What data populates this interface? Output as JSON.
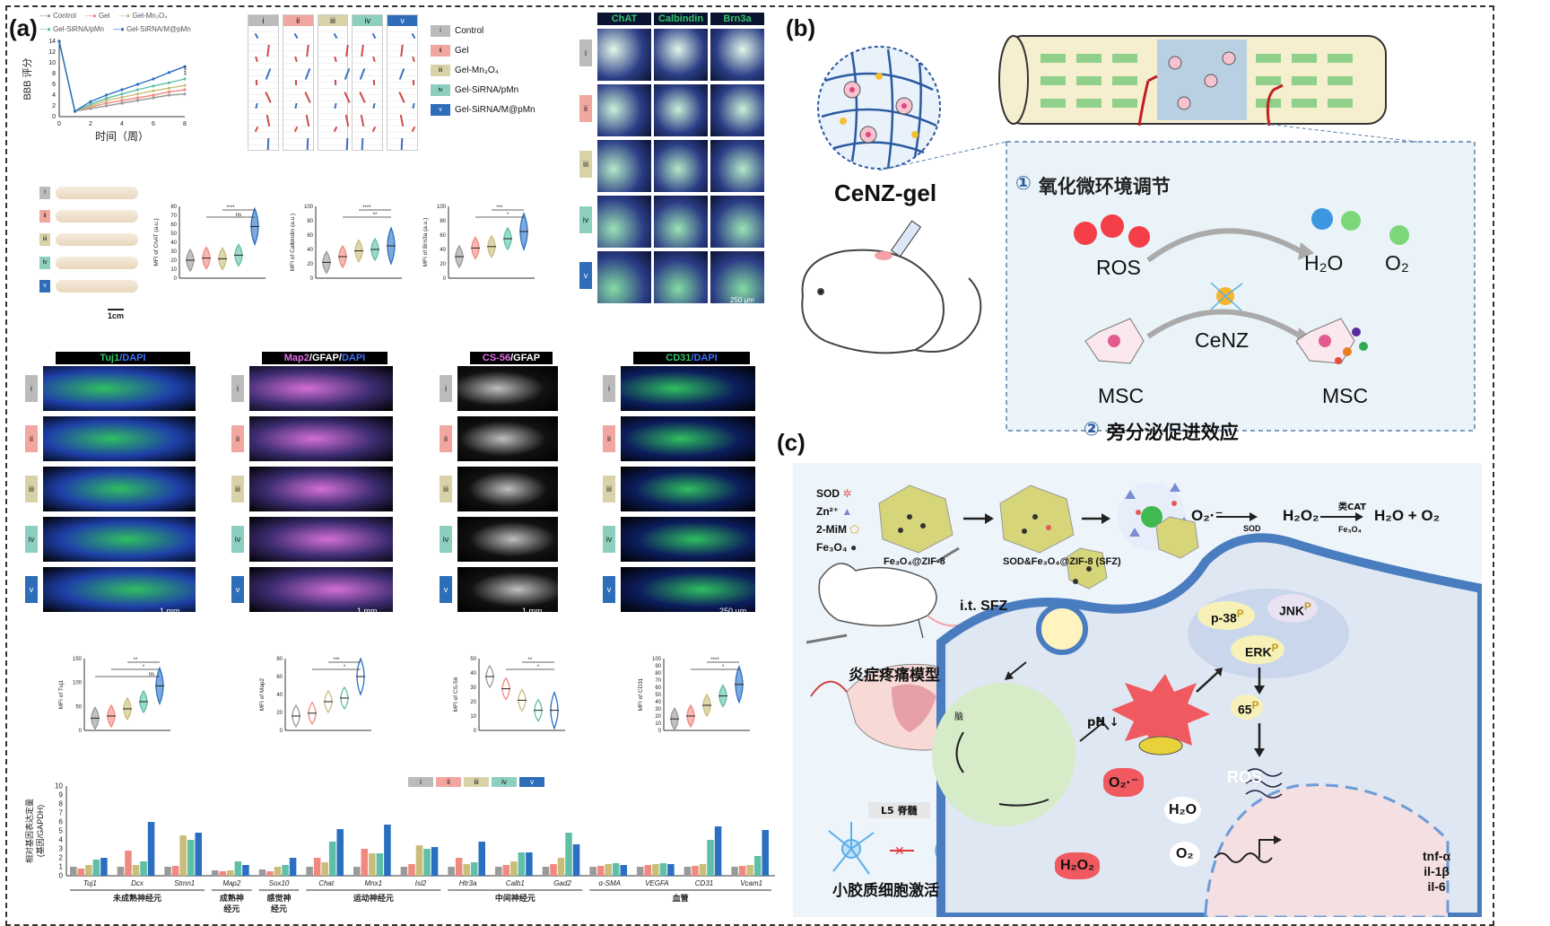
{
  "panels": {
    "a": "(a)",
    "b": "(b)",
    "c": "(c)"
  },
  "legend_a": [
    "Control",
    "Gel",
    "Gel-Mn₃O₄",
    "Gel-SiRNA/pMn",
    "Gel-SiRNA/M@pMn"
  ],
  "groups": [
    "i",
    "ii",
    "iii",
    "iv",
    "v"
  ],
  "group_legend": [
    "Control",
    "Gel",
    "Gel-Mn₃O₄",
    "Gel-SiRNA/pMn",
    "Gel-SiRNA/M@pMn"
  ],
  "bbb": {
    "ylabel": "BBB 评分",
    "xlabel": "时间（周）",
    "x": [
      0,
      1,
      2,
      3,
      4,
      5,
      6,
      7,
      8
    ],
    "yticks": [
      0,
      2,
      4,
      6,
      8,
      10,
      12,
      14
    ],
    "series": [
      {
        "name": "Control",
        "values": [
          14,
          1,
          1.5,
          2,
          2.5,
          3,
          3.5,
          4,
          4.2
        ]
      },
      {
        "name": "Gel",
        "values": [
          14,
          1,
          1.8,
          2.5,
          3,
          3.5,
          4,
          4.6,
          5
        ]
      },
      {
        "name": "Gel-Mn₃O₄",
        "values": [
          14,
          1,
          2,
          3,
          3.6,
          4.2,
          4.8,
          5.3,
          5.8
        ]
      },
      {
        "name": "Gel-SiRNA/pMn",
        "values": [
          14,
          1,
          2.3,
          3.4,
          4.2,
          5,
          5.7,
          6.3,
          7
        ]
      },
      {
        "name": "Gel-SiRNA/M@pMn",
        "values": [
          14,
          1,
          2.8,
          4,
          5,
          6,
          7,
          8.2,
          9.3
        ]
      }
    ],
    "sig": "****"
  },
  "scale_1cm": "1cm",
  "violins_top": [
    {
      "ylabel": "MFI of ChAT (a.u.)",
      "ticks": [
        "0",
        "10",
        "20",
        "30",
        "40",
        "50",
        "60",
        "70",
        "80"
      ],
      "sig": [
        "****",
        "ns"
      ]
    },
    {
      "ylabel": "MFI of Calbindin (a.u.)",
      "ticks": [
        "0",
        "20",
        "40",
        "60",
        "80",
        "100"
      ],
      "sig": [
        "****",
        "**"
      ]
    },
    {
      "ylabel": "MFI of Brn3a (a.u.)",
      "ticks": [
        "0",
        "20",
        "40",
        "60",
        "80",
        "100"
      ],
      "sig": [
        "***",
        "*"
      ]
    }
  ],
  "stain_top": [
    "ChAT",
    "Calbindin",
    "Brn3a"
  ],
  "scale_250": "250 μm",
  "stain_mid": [
    {
      "a": "Tuj1",
      "b": "/DAPI",
      "c": ""
    },
    {
      "a": "Map2",
      "b": "/GFAP/",
      "c": "DAPI"
    },
    {
      "a": "CS-56",
      "b": "/GFAP",
      "c": ""
    },
    {
      "a": "CD31",
      "b": "/",
      "c": "DAPI"
    }
  ],
  "scale_1mm": "1 mm",
  "violins_mid": [
    {
      "ylabel": "MFI of Tuj1",
      "ticks": [
        "0",
        "50",
        "100",
        "150"
      ],
      "sig": [
        "**",
        "*",
        "ns"
      ]
    },
    {
      "ylabel": "MFI of Map2",
      "ticks": [
        "0",
        "20",
        "40",
        "60",
        "80"
      ],
      "sig": [
        "***",
        "*"
      ]
    },
    {
      "ylabel": "MFI of CS-56",
      "ticks": [
        "0",
        "10",
        "20",
        "30",
        "40",
        "50"
      ],
      "sig": [
        "**",
        "*"
      ]
    },
    {
      "ylabel": "MFI of CD31",
      "ticks": [
        "0",
        "10",
        "20",
        "30",
        "40",
        "50",
        "60",
        "70",
        "80",
        "90",
        "100"
      ],
      "sig": [
        "****",
        "*"
      ]
    }
  ],
  "gene_chart": {
    "ylabel": "相对基因表达定量\n(基因/GAPDH)",
    "yticks": [
      "0",
      "1",
      "2",
      "3",
      "4",
      "5",
      "6",
      "7",
      "8",
      "9",
      "10"
    ],
    "genes": [
      "Tuj1",
      "Dcx",
      "Stmn1",
      "Map2",
      "Sox10",
      "Chat",
      "Mnx1",
      "Isl2",
      "Htr3a",
      "Calb1",
      "Gad2",
      "α-SMA",
      "VEGFA",
      "CD31",
      "Vcam1"
    ],
    "categories": [
      {
        "label": "未成熟神经元",
        "span": [
          0,
          2
        ]
      },
      {
        "label": "成熟神经元",
        "span": [
          3,
          3
        ]
      },
      {
        "label": "感觉神经元",
        "span": [
          4,
          4
        ]
      },
      {
        "label": "运动神经元",
        "span": [
          5,
          7
        ]
      },
      {
        "label": "中间神经元",
        "span": [
          8,
          10
        ]
      },
      {
        "label": "血管",
        "span": [
          11,
          14
        ]
      }
    ],
    "values": [
      [
        1,
        0.8,
        1.2,
        1.8,
        2
      ],
      [
        1,
        2.8,
        1.2,
        1.6,
        6
      ],
      [
        1,
        1.1,
        4.5,
        4,
        4.8
      ],
      [
        0.6,
        0.5,
        0.6,
        1.6,
        1.2
      ],
      [
        0.7,
        0.5,
        1,
        1.2,
        2
      ],
      [
        1,
        2,
        1.5,
        3.8,
        5.2
      ],
      [
        1,
        3,
        2.5,
        2.5,
        5.7
      ],
      [
        1,
        1.3,
        3.4,
        3,
        3.2
      ],
      [
        1,
        2,
        1.3,
        1.5,
        3.8
      ],
      [
        1,
        1.2,
        1.6,
        2.6,
        2.6
      ],
      [
        1,
        1.3,
        2,
        4.8,
        3.5
      ],
      [
        1,
        1.1,
        1.3,
        1.4,
        1.2
      ],
      [
        1,
        1.2,
        1.3,
        1.4,
        1.3
      ],
      [
        1,
        1.1,
        1.3,
        4,
        5.5
      ],
      [
        1,
        1.1,
        1.2,
        2.2,
        5.1
      ]
    ]
  },
  "panel_b": {
    "gel_label": "CeNZ-gel",
    "step1_num": "①",
    "step1": "氧化微环境调节",
    "ros": "ROS",
    "h2o": "H₂O",
    "o2": "O₂",
    "cenz": "CeNZ",
    "msc_left": "MSC",
    "msc_right": "MSC",
    "step2_num": "②",
    "step2": "旁分泌促进效应"
  },
  "panel_c": {
    "legend": [
      "SOD",
      "Zn²⁺",
      "2-MiM",
      "Fe₃O₄"
    ],
    "np1": "Fe₃O₄@ZIF-8",
    "np2": "SOD&Fe₃O₄@ZIF-8 (SFZ)",
    "rxn_o2": "O₂·⁻",
    "rxn_h2o2": "H₂O₂",
    "rxn_sod": "SOD",
    "rxn_cat": "类CAT",
    "rxn_fe": "Fe₃O₄",
    "rxn_prod": "H₂O + O₂",
    "injection": "i.t. SFZ",
    "model": "炎症疼痛模型",
    "brain": "脑",
    "spine": "L5 脊髓",
    "microglia": "小胶质细胞激活",
    "ph": "pH ↓",
    "o2r": "O₂·⁻",
    "h2o2": "H₂O₂",
    "h2o": "H₂O",
    "o2": "O₂",
    "ros": "ROS",
    "p38": "p-38",
    "jnk": "JNK",
    "erk": "ERK",
    "p65": "65",
    "p": "P",
    "cytokines": [
      "tnf-α",
      "il-1β",
      "il-6"
    ]
  },
  "colors": {
    "control": "#9a9a9a",
    "gel": "#f08a80",
    "mn": "#c9bd7a",
    "pmn": "#5fbfa7",
    "mpmn": "#2a6fc1",
    "bbb_m": "#3d8fd6",
    "bbb_p": "#9acde6"
  }
}
